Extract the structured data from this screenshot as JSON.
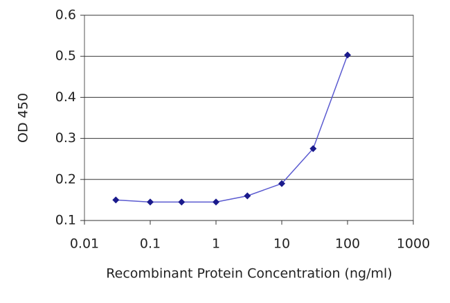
{
  "chart_data": {
    "type": "line",
    "xlabel": "Recombinant Protein Concentration (ng/ml)",
    "ylabel": "OD 450",
    "x": [
      0.03,
      0.1,
      0.3,
      1,
      3,
      10,
      30,
      100
    ],
    "series": [
      {
        "color": "#1a1a8c",
        "line_color": "#5a5ad0",
        "values": [
          0.15,
          0.145,
          0.145,
          0.145,
          0.16,
          0.19,
          0.275,
          0.503
        ]
      }
    ],
    "xscale": "log",
    "xlim": [
      0.01,
      1000
    ],
    "xticks": [
      0.01,
      0.1,
      1,
      10,
      100,
      1000
    ],
    "ylim": [
      0.1,
      0.6
    ],
    "yticks": [
      0.1,
      0.2,
      0.3,
      0.4,
      0.5,
      0.6
    ],
    "grid": true
  }
}
